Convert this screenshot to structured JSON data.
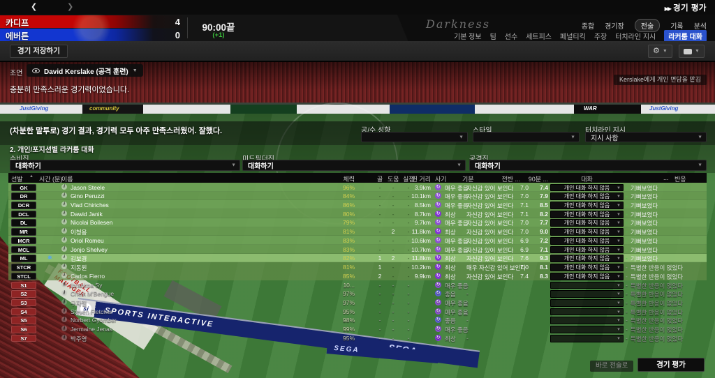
{
  "topbar": {
    "title": "경기 평가",
    "tabs_primary": [
      {
        "label": "종합",
        "selected": false
      },
      {
        "label": "경기장",
        "selected": false
      },
      {
        "label": "전술",
        "selected": true
      },
      {
        "label": "기록",
        "selected": false
      },
      {
        "label": "분석",
        "selected": false
      }
    ],
    "tabs_secondary": [
      {
        "label": "기본 정보",
        "selected": false
      },
      {
        "label": "팀",
        "selected": false
      },
      {
        "label": "선수",
        "selected": false
      },
      {
        "label": "세트피스",
        "selected": false
      },
      {
        "label": "페널티킥",
        "selected": false
      },
      {
        "label": "주장",
        "selected": false
      },
      {
        "label": "터치라인 지시",
        "selected": false
      },
      {
        "label": "라커룸 대화",
        "selected": true
      }
    ],
    "skin_logo": "Darkness"
  },
  "scoreboard": {
    "home_name": "카디프",
    "home_score": "4",
    "away_name": "에버튼",
    "away_score": "0",
    "time": "90:00끝",
    "extra": "(+1)"
  },
  "toolbar": {
    "save_label": "경기 저장하기"
  },
  "advisor": {
    "label": "조언",
    "dropdown_value": "David Kerslake (공격 훈련)",
    "message": "충분히 만족스러운 경기력이었습니다.",
    "assign_button": "Kerslake에게 개인 면담을 맡김"
  },
  "talk": {
    "manager_message": "(차분한 말투로) 경기 결과, 경기력 모두 아주 만족스러웠어. 잘했다.",
    "section_title": "2. 개인/포지션별 라커룸 대화",
    "selectors": [
      {
        "label": "공/수 성향",
        "value": ""
      },
      {
        "label": "스타일",
        "value": ""
      },
      {
        "label": "터치라인 지시",
        "value": "지시 사항"
      }
    ],
    "groups": [
      {
        "label": "수비진",
        "value": "대화하기"
      },
      {
        "label": "미드필더진",
        "value": "대화하기"
      },
      {
        "label": "공격진",
        "value": "대화하기"
      }
    ]
  },
  "table": {
    "headers": {
      "start": "선발",
      "time": "시간 (분)",
      "name": "이름",
      "cond": "체력",
      "goals": "골",
      "assists": "도움",
      "conceded": "실점",
      "dist": "뛴 거리",
      "morale": "사기",
      "mood": "기분",
      "ht": "전반 ...",
      "ft": "90분 ...",
      "talk": "대화",
      "ellipsis": "...",
      "reaction": "반응"
    },
    "rows": [
      {
        "pos": "GK",
        "kind": "played",
        "name": "Jason Steele",
        "cond": "96%",
        "g": "-",
        "a": "-",
        "c": "-",
        "dist": "3.9km",
        "morale": "매우 좋음",
        "mood": "자신감 있어 보인다",
        "r1": "7.0",
        "r2": "7.4",
        "talk": "개인 대화 하지 않음",
        "reaction": "기뻐보였다"
      },
      {
        "pos": "DR",
        "kind": "played",
        "name": "Gino Peruzzi",
        "cond": "84%",
        "g": "-",
        "a": "-",
        "c": "-",
        "dist": "10.1km",
        "morale": "매우 좋음",
        "mood": "자신감 있어 보인다",
        "r1": "7.0",
        "r2": "7.9",
        "talk": "개인 대화 하지 않음",
        "reaction": "기뻐보였다"
      },
      {
        "pos": "DCR",
        "kind": "played",
        "name": "Vlad Chiriches",
        "cond": "86%",
        "g": "-",
        "a": "-",
        "c": "-",
        "dist": "8.5km",
        "morale": "매우 좋음",
        "mood": "자신감 있어 보인다",
        "r1": "7.1",
        "r2": "8.5",
        "talk": "개인 대화 하지 않음",
        "reaction": "기뻐보였다"
      },
      {
        "pos": "DCL",
        "kind": "played",
        "name": "Dawid Janik",
        "cond": "80%",
        "g": "-",
        "a": "-",
        "c": "-",
        "dist": "8.7km",
        "morale": "최상",
        "mood": "자신감 있어 보인다",
        "r1": "7.1",
        "r2": "8.2",
        "talk": "개인 대화 하지 않음",
        "reaction": "기뻐보였다"
      },
      {
        "pos": "DL",
        "kind": "played",
        "name": "Nicolai Boilesen",
        "cond": "79%",
        "g": "-",
        "a": "-",
        "c": "-",
        "dist": "9.7km",
        "morale": "매우 좋음",
        "mood": "자신감 있어 보인다",
        "r1": "7.0",
        "r2": "7.7",
        "talk": "개인 대화 하지 않음",
        "reaction": "기뻐보였다"
      },
      {
        "pos": "MR",
        "kind": "played",
        "name": "이청용",
        "cond": "81%",
        "g": "-",
        "a": "2",
        "c": "-",
        "dist": "11.8km",
        "morale": "최상",
        "mood": "자신감 있어 보인다",
        "r1": "7.0",
        "r2": "9.0",
        "talk": "개인 대화 하지 않음",
        "reaction": "기뻐보였다"
      },
      {
        "pos": "MCR",
        "kind": "played",
        "name": "Oriol Romeu",
        "cond": "83%",
        "g": "-",
        "a": "-",
        "c": "-",
        "dist": "10.6km",
        "morale": "매우 좋음",
        "mood": "자신감 있어 보인다",
        "r1": "6.9",
        "r2": "7.2",
        "talk": "개인 대화 하지 않음",
        "reaction": "기뻐보였다"
      },
      {
        "pos": "MCL",
        "kind": "played",
        "name": "Jonjo Shelvey",
        "cond": "83%",
        "g": "-",
        "a": "-",
        "c": "-",
        "dist": "10.7km",
        "morale": "매우 좋음",
        "mood": "자신감 있어 보인다",
        "r1": "6.9",
        "r2": "7.1",
        "talk": "개인 대화 하지 않음",
        "reaction": "기뻐보였다"
      },
      {
        "pos": "ML",
        "kind": "played",
        "selected": true,
        "star": true,
        "name": "김보경",
        "cond": "82%",
        "g": "1",
        "a": "2",
        "c": "-",
        "dist": "11.8km",
        "morale": "최상",
        "mood": "자신감 있어 보인다",
        "r1": "7.6",
        "r2": "9.3",
        "talk": "개인 대화 하지 않음",
        "reaction": "기뻐보였다"
      },
      {
        "pos": "STCR",
        "kind": "stc",
        "name": "지동원",
        "cond": "81%",
        "g": "1",
        "a": "-",
        "c": "-",
        "dist": "10.2km",
        "morale": "최상",
        "mood": "매우 자신감 있어 보인다",
        "r1": "7.0",
        "r2": "8.1",
        "talk": "개인 대화 하지 않음",
        "reaction": "특별한 반응이 없었다"
      },
      {
        "pos": "STCL",
        "kind": "stc",
        "name": "Carlos Fierro",
        "cond": "85%",
        "g": "2",
        "a": "-",
        "c": "-",
        "dist": "9.9km",
        "morale": "최상",
        "mood": "자신감 있어 보인다",
        "r1": "7.4",
        "r2": "8.3",
        "talk": "개인 대화 하지 않음",
        "reaction": "특별한 반응이 없었다"
      },
      {
        "pos": "S1",
        "kind": "sub",
        "name": "Ibrahima Sy",
        "cond": "10...",
        "g": "-",
        "a": "-",
        "c": "-",
        "dist": "",
        "morale": "매우 좋음",
        "mood": "-",
        "r1": "",
        "r2": "",
        "talk": "",
        "reaction": "특별한 반응이 없었다"
      },
      {
        "pos": "S2",
        "kind": "sub",
        "name": "Cheik M'Bengue",
        "cond": "97%",
        "g": "-",
        "a": "-",
        "c": "-",
        "dist": "",
        "morale": "좋음",
        "mood": "-",
        "r1": "",
        "r2": "",
        "talk": "",
        "reaction": "특별한 반응이 없었다"
      },
      {
        "pos": "S3",
        "kind": "sub",
        "name": "구자철",
        "cond": "97%",
        "g": "-",
        "a": "-",
        "c": "-",
        "dist": "",
        "morale": "매우 좋음",
        "mood": "-",
        "r1": "",
        "r2": "",
        "talk": "",
        "reaction": "특별한 반응이 없었다"
      },
      {
        "pos": "S4",
        "kind": "sub",
        "name": "Steven Fletcher",
        "cond": "95%",
        "g": "-",
        "a": "-",
        "c": "-",
        "dist": "",
        "morale": "매우 좋음",
        "mood": "-",
        "r1": "",
        "r2": "",
        "talk": "",
        "reaction": "특별한 반응이 없었다"
      },
      {
        "pos": "S5",
        "kind": "sub",
        "name": "Norbert Gyomber",
        "cond": "98%",
        "g": "-",
        "a": "-",
        "c": "-",
        "dist": "",
        "morale": "좋음",
        "mood": "-",
        "r1": "",
        "r2": "",
        "talk": "",
        "reaction": "특별한 반응이 없었다"
      },
      {
        "pos": "S6",
        "kind": "sub",
        "name": "Jermaine Jenas",
        "cond": "99%",
        "g": "-",
        "a": "-",
        "c": "-",
        "dist": "",
        "morale": "매우 좋음",
        "mood": "-",
        "r1": "",
        "r2": "",
        "talk": "",
        "reaction": "특별한 반응이 없었다"
      },
      {
        "pos": "S7",
        "kind": "sub",
        "name": "박주영",
        "cond": "95%",
        "g": "-",
        "a": "-",
        "c": "-",
        "dist": "",
        "morale": "최상",
        "mood": "-",
        "r1": "",
        "r2": "",
        "talk": "",
        "reaction": "특별한 반응이 없었다"
      }
    ]
  },
  "footer": {
    "secondary": "바로 전술로",
    "primary": "경기 평가"
  },
  "background": {
    "ads": [
      "JustGiving",
      "community",
      "WAR",
      "JustGiving"
    ],
    "boards": {
      "fm_line1": "FOOTBALL",
      "fm_line2": "MANAGER",
      "si": "SPORTS INTERACTIVE",
      "sega": "SEGA",
      "si_logo": "si"
    }
  },
  "colors": {
    "accent_blue": "#2a52cc",
    "time_green": "#3bbf3b",
    "condition_yellow": "#d2cf4e",
    "sub_badge_red": "#8e2424",
    "predash_pleased": "#4cc24c",
    "predash_none": "#9a9a9a",
    "morale": {
      "최상": "#8430d8",
      "매우 좋음": "#8d4fd4",
      "좋음": "#5f5fd8"
    }
  }
}
